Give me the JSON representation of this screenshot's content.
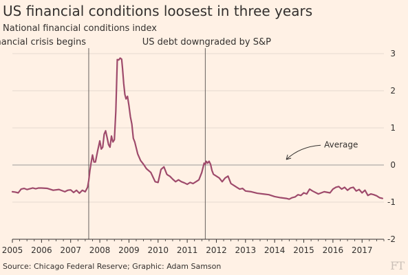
{
  "chart_data": {
    "type": "line",
    "title": "US financial conditions loosest in three years",
    "subtitle": "National financial conditions index",
    "xlabel": "",
    "ylabel": "",
    "xlim": [
      2005,
      2017.75
    ],
    "ylim": [
      -2,
      3
    ],
    "x_ticks": [
      "2005",
      "2006",
      "2007",
      "2008",
      "2009",
      "2010",
      "2011",
      "2012",
      "2013",
      "2014",
      "2015",
      "2016",
      "2017"
    ],
    "y_ticks": [
      "3",
      "2",
      "1",
      "0",
      "-1",
      "-2"
    ],
    "grid": "horizontal",
    "series": [
      {
        "name": "",
        "color": "#9e4a6b",
        "x": [
          2005.0,
          2005.1,
          2005.2,
          2005.3,
          2005.4,
          2005.5,
          2005.6,
          2005.7,
          2005.8,
          2005.9,
          2006.0,
          2006.2,
          2006.4,
          2006.6,
          2006.8,
          2006.9,
          2007.0,
          2007.1,
          2007.2,
          2007.3,
          2007.4,
          2007.5,
          2007.58,
          2007.62,
          2007.66,
          2007.7,
          2007.75,
          2007.8,
          2007.85,
          2007.92,
          2008.0,
          2008.05,
          2008.1,
          2008.15,
          2008.2,
          2008.25,
          2008.3,
          2008.35,
          2008.4,
          2008.45,
          2008.5,
          2008.55,
          2008.6,
          2008.65,
          2008.7,
          2008.75,
          2008.78,
          2008.82,
          2008.86,
          2008.9,
          2008.95,
          2009.0,
          2009.05,
          2009.1,
          2009.15,
          2009.2,
          2009.3,
          2009.4,
          2009.5,
          2009.6,
          2009.75,
          2009.9,
          2010.0,
          2010.1,
          2010.2,
          2010.3,
          2010.35,
          2010.4,
          2010.5,
          2010.6,
          2010.7,
          2010.8,
          2010.9,
          2011.0,
          2011.1,
          2011.2,
          2011.3,
          2011.4,
          2011.5,
          2011.58,
          2011.62,
          2011.65,
          2011.7,
          2011.75,
          2011.8,
          2011.85,
          2011.9,
          2012.0,
          2012.1,
          2012.2,
          2012.3,
          2012.4,
          2012.5,
          2012.6,
          2012.7,
          2012.8,
          2012.9,
          2013.0,
          2013.2,
          2013.4,
          2013.6,
          2013.8,
          2014.0,
          2014.2,
          2014.4,
          2014.5,
          2014.6,
          2014.7,
          2014.8,
          2014.9,
          2015.0,
          2015.1,
          2015.2,
          2015.3,
          2015.5,
          2015.7,
          2015.9,
          2016.0,
          2016.1,
          2016.2,
          2016.3,
          2016.4,
          2016.5,
          2016.6,
          2016.7,
          2016.8,
          2016.9,
          2017.0,
          2017.1,
          2017.2,
          2017.3,
          2017.4,
          2017.5,
          2017.6,
          2017.7
        ],
        "values": [
          -0.72,
          -0.73,
          -0.75,
          -0.65,
          -0.63,
          -0.66,
          -0.64,
          -0.62,
          -0.64,
          -0.62,
          -0.62,
          -0.63,
          -0.68,
          -0.66,
          -0.72,
          -0.68,
          -0.67,
          -0.74,
          -0.68,
          -0.76,
          -0.68,
          -0.72,
          -0.6,
          -0.42,
          -0.15,
          0.05,
          0.27,
          0.08,
          0.08,
          0.36,
          0.65,
          0.43,
          0.48,
          0.83,
          0.92,
          0.74,
          0.55,
          0.48,
          0.78,
          0.62,
          0.68,
          1.45,
          2.84,
          2.83,
          2.88,
          2.85,
          2.6,
          2.2,
          1.9,
          1.78,
          1.85,
          1.6,
          1.3,
          1.1,
          0.72,
          0.62,
          0.3,
          0.12,
          0.02,
          -0.1,
          -0.2,
          -0.45,
          -0.47,
          -0.12,
          -0.05,
          -0.25,
          -0.28,
          -0.3,
          -0.38,
          -0.45,
          -0.4,
          -0.45,
          -0.48,
          -0.52,
          -0.47,
          -0.5,
          -0.45,
          -0.4,
          -0.2,
          0.05,
          0.02,
          0.1,
          0.05,
          0.1,
          0.02,
          -0.15,
          -0.25,
          -0.3,
          -0.35,
          -0.45,
          -0.35,
          -0.3,
          -0.5,
          -0.55,
          -0.6,
          -0.65,
          -0.63,
          -0.7,
          -0.72,
          -0.76,
          -0.78,
          -0.8,
          -0.85,
          -0.88,
          -0.9,
          -0.92,
          -0.88,
          -0.86,
          -0.8,
          -0.82,
          -0.75,
          -0.78,
          -0.65,
          -0.7,
          -0.78,
          -0.72,
          -0.75,
          -0.65,
          -0.6,
          -0.58,
          -0.65,
          -0.6,
          -0.68,
          -0.62,
          -0.6,
          -0.7,
          -0.66,
          -0.75,
          -0.68,
          -0.82,
          -0.78,
          -0.8,
          -0.83,
          -0.88,
          -0.9
        ]
      }
    ],
    "annotations": [
      {
        "label": "Financial crisis begins",
        "x": 2007.62
      },
      {
        "label": "US debt downgraded by S&P",
        "x": 2011.62
      },
      {
        "label": "Average",
        "x": 2014.4,
        "y": 0.55
      }
    ]
  },
  "footer": {
    "source": "Source: Chicago Federal Reserve; Graphic: Adam Samson",
    "logo": "FT"
  },
  "colors": {
    "background": "#fff1e5",
    "series": "#9e4a6b",
    "grid": "#e6d9ce",
    "zero_line": "#999999"
  }
}
